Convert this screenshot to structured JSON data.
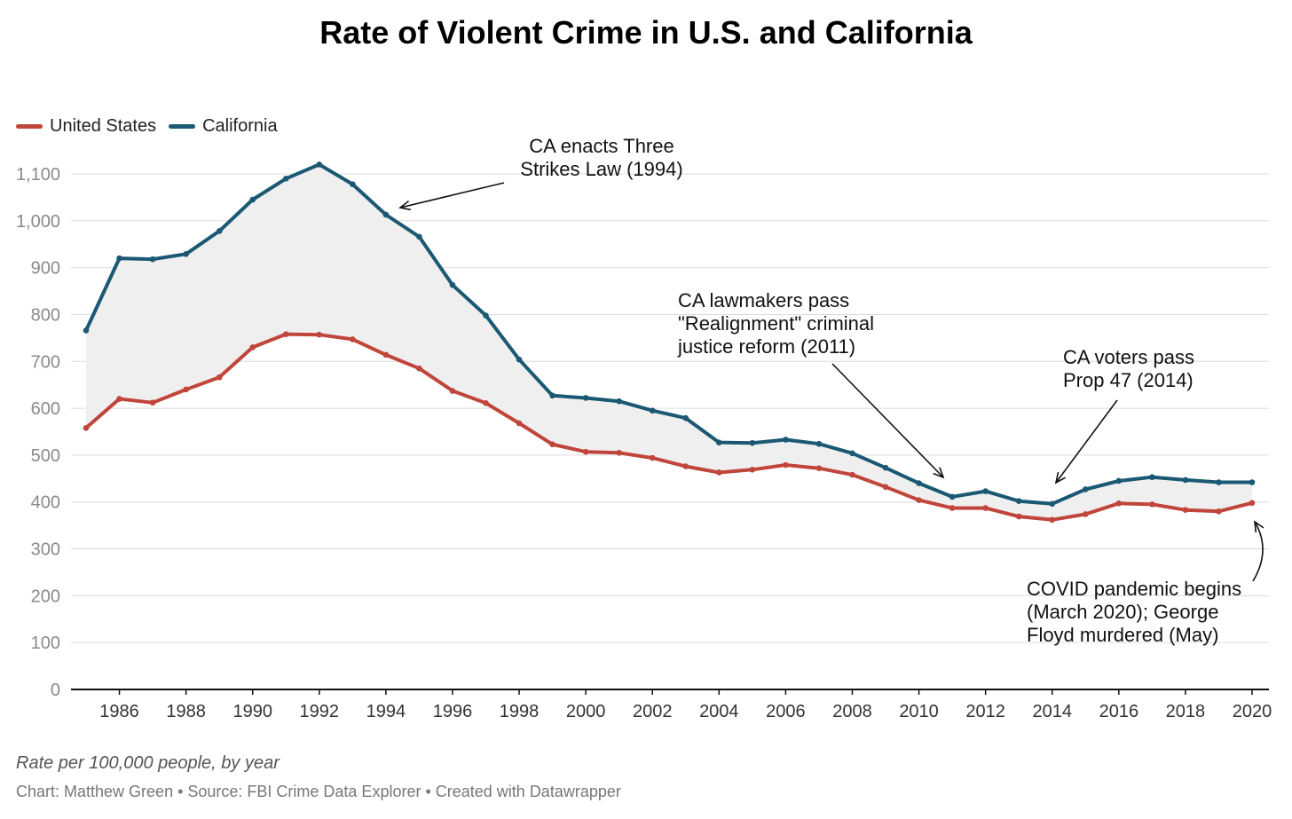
{
  "chart_data": {
    "type": "line",
    "title": "Rate of Violent Crime in U.S. and California",
    "x": [
      1985,
      1986,
      1987,
      1988,
      1989,
      1990,
      1991,
      1992,
      1993,
      1994,
      1995,
      1996,
      1997,
      1998,
      1999,
      2000,
      2001,
      2002,
      2003,
      2004,
      2005,
      2006,
      2007,
      2008,
      2009,
      2010,
      2011,
      2012,
      2013,
      2014,
      2015,
      2016,
      2017,
      2018,
      2019,
      2020
    ],
    "series": [
      {
        "name": "United States",
        "color": "#c0453a",
        "values": [
          558,
          620,
          612,
          640,
          666,
          730,
          758,
          757,
          747,
          714,
          685,
          637,
          611,
          568,
          523,
          507,
          505,
          494,
          476,
          463,
          469,
          479,
          472,
          458,
          432,
          404,
          387,
          387,
          369,
          362,
          374,
          397,
          395,
          383,
          380,
          398
        ]
      },
      {
        "name": "California",
        "color": "#1a5873",
        "values": [
          766,
          920,
          918,
          929,
          978,
          1045,
          1090,
          1120,
          1078,
          1013,
          966,
          863,
          798,
          704,
          627,
          622,
          615,
          595,
          579,
          527,
          526,
          533,
          524,
          504,
          473,
          440,
          411,
          423,
          402,
          396,
          427,
          445,
          453,
          447,
          442,
          442
        ]
      }
    ],
    "xlabel": "",
    "ylabel": "",
    "ylim": [
      0,
      1150
    ],
    "yticks": [
      0,
      100,
      200,
      300,
      400,
      500,
      600,
      700,
      800,
      900,
      1000,
      1100
    ],
    "ytick_labels": [
      "0",
      "100",
      "200",
      "300",
      "400",
      "500",
      "600",
      "700",
      "800",
      "900",
      "1,000",
      "1,100"
    ],
    "xticks": [
      1986,
      1988,
      1990,
      1992,
      1994,
      1996,
      1998,
      2000,
      2002,
      2004,
      2006,
      2008,
      2010,
      2012,
      2014,
      2016,
      2018,
      2020
    ],
    "grid": true,
    "legend_position": "top-left",
    "fill_between": "light gray",
    "annotations": [
      {
        "lines": [
          "CA enacts Three",
          "Strikes Law (1994)"
        ],
        "year": 1994,
        "value": 1013,
        "align": "middle"
      },
      {
        "lines": [
          "CA lawmakers pass",
          "\"Realignment\" criminal",
          "justice reform (2011)"
        ],
        "year": 2011,
        "value": 411,
        "align": "start"
      },
      {
        "lines": [
          "CA voters pass",
          "Prop 47 (2014)"
        ],
        "year": 2014,
        "value": 396,
        "align": "start"
      },
      {
        "lines": [
          "COVID pandemic begins",
          "(March 2020); George",
          "Floyd murdered (May)"
        ],
        "year": 2020,
        "value": 398,
        "align": "start"
      }
    ]
  },
  "footer": {
    "note": "Rate per 100,000 people, by year",
    "credit": "Chart: Matthew Green • Source: FBI Crime Data Explorer • Created with Datawrapper"
  }
}
